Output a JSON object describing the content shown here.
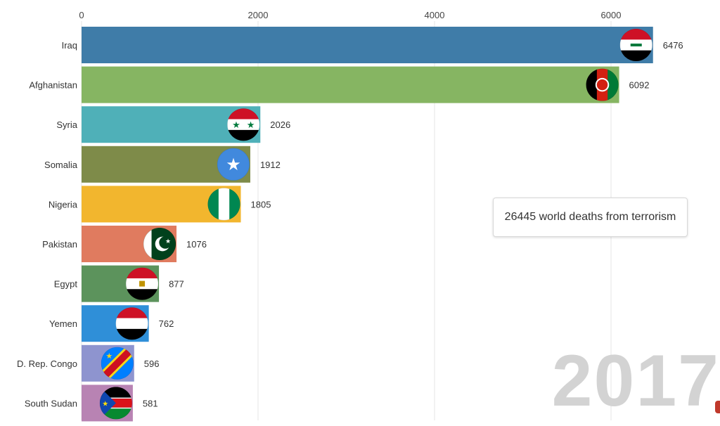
{
  "chart_data": {
    "type": "bar",
    "orientation": "horizontal",
    "categories": [
      "Iraq",
      "Afghanistan",
      "Syria",
      "Somalia",
      "Nigeria",
      "Pakistan",
      "Egypt",
      "Yemen",
      "D. Rep. Congo",
      "South Sudan"
    ],
    "values": [
      6476,
      6092,
      2026,
      1912,
      1805,
      1076,
      877,
      762,
      596,
      581
    ],
    "colors": [
      "#3f7ca8",
      "#86b562",
      "#4fb0b8",
      "#7e8b49",
      "#f2b62e",
      "#e07b5f",
      "#5c935c",
      "#2f8fd8",
      "#8e94cf",
      "#b883b3"
    ],
    "flags": [
      "iraq-flag",
      "afghanistan-flag",
      "syria-flag",
      "somalia-flag",
      "nigeria-flag",
      "pakistan-flag",
      "egypt-flag",
      "yemen-flag",
      "drc-flag",
      "south-sudan-flag"
    ],
    "xlim": [
      0,
      6500
    ],
    "xticks": [
      "0",
      "2000",
      "4000",
      "6000"
    ],
    "xtick_values": [
      0,
      2000,
      4000,
      6000
    ],
    "axis_position": "top",
    "grid": true,
    "title": "",
    "xlabel": "",
    "ylabel": ""
  },
  "overlay": {
    "total_text": "26445 world deaths from terrorism",
    "year": "2017"
  }
}
